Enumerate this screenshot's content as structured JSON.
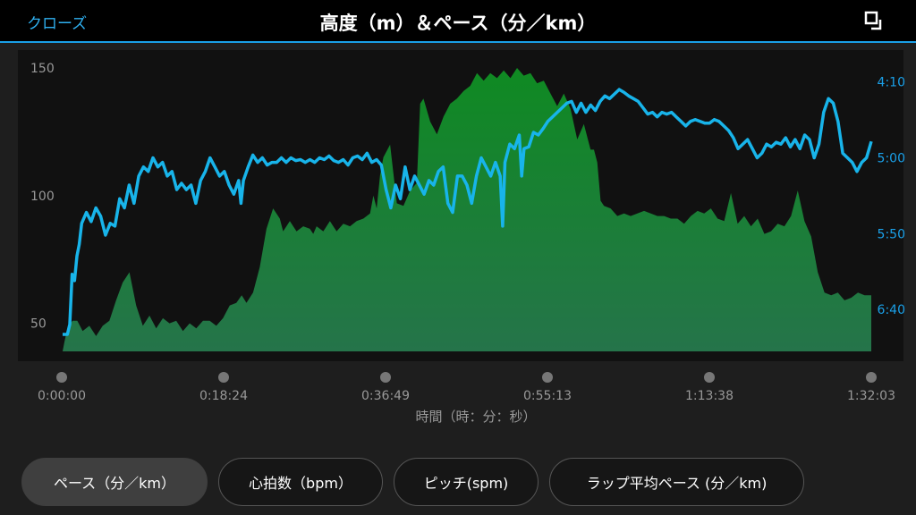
{
  "header": {
    "close_label": "クローズ",
    "title": "高度（m）＆ペース（分／km）"
  },
  "icons": {
    "fullscreen": "fullscreen-exit-icon"
  },
  "colors": {
    "background": "#1e1e1e",
    "header": "#000000",
    "accent": "#1aa0e8",
    "pace_line": "#18b4ea",
    "elevation_fill_top": "#0f8a22",
    "elevation_fill_bottom": "#25744a"
  },
  "chart_data": {
    "type": "area",
    "xlabel": "時間（時：分：秒）",
    "x_ticks": [
      "0:00:00",
      "0:18:24",
      "0:36:49",
      "0:55:13",
      "1:13:38",
      "1:32:03"
    ],
    "left_axis": {
      "ticks": [
        150,
        100,
        50
      ],
      "range": [
        39,
        157
      ]
    },
    "right_axis": {
      "ticks": [
        "4:10",
        "5:00",
        "5:50",
        "6:40"
      ],
      "range_min_per_km": [
        4.17,
        6.94
      ]
    },
    "series": [
      {
        "type": "area",
        "axis": "left",
        "points": [
          [
            0,
            39
          ],
          [
            0.3,
            43
          ],
          [
            0.8,
            49
          ],
          [
            1.5,
            51
          ],
          [
            2.2,
            51
          ],
          [
            3,
            47
          ],
          [
            4,
            49
          ],
          [
            5,
            45
          ],
          [
            6,
            49
          ],
          [
            7,
            51
          ],
          [
            8,
            59
          ],
          [
            9,
            66
          ],
          [
            10,
            70
          ],
          [
            11,
            57
          ],
          [
            12,
            49
          ],
          [
            13,
            53
          ],
          [
            14,
            48
          ],
          [
            15,
            52
          ],
          [
            16,
            50
          ],
          [
            17,
            51
          ],
          [
            18,
            47
          ],
          [
            19,
            50
          ],
          [
            20,
            48
          ],
          [
            21,
            51
          ],
          [
            22,
            51
          ],
          [
            23,
            49
          ],
          [
            24,
            52
          ],
          [
            25,
            57
          ],
          [
            26,
            58
          ],
          [
            26.8,
            61
          ],
          [
            27.5,
            58
          ],
          [
            28.5,
            62
          ],
          [
            29.5,
            72
          ],
          [
            30.5,
            87
          ],
          [
            31.5,
            95
          ],
          [
            32.5,
            91
          ],
          [
            33,
            86
          ],
          [
            34,
            90
          ],
          [
            35,
            86
          ],
          [
            36,
            88
          ],
          [
            37,
            87
          ],
          [
            37.5,
            85
          ],
          [
            38,
            88
          ],
          [
            39,
            86
          ],
          [
            40,
            90
          ],
          [
            41,
            86
          ],
          [
            42,
            89
          ],
          [
            43,
            88
          ],
          [
            44,
            90
          ],
          [
            45,
            91
          ],
          [
            46,
            93
          ],
          [
            46.5,
            100
          ],
          [
            47,
            95
          ],
          [
            47.5,
            108
          ],
          [
            48,
            115
          ],
          [
            49,
            120
          ],
          [
            50,
            97
          ],
          [
            51,
            96
          ],
          [
            52,
            102
          ],
          [
            53,
            105
          ],
          [
            53.5,
            136
          ],
          [
            54,
            138
          ],
          [
            55,
            129
          ],
          [
            56,
            124
          ],
          [
            57,
            131
          ],
          [
            58,
            136
          ],
          [
            59,
            138
          ],
          [
            60,
            141
          ],
          [
            61,
            143
          ],
          [
            62,
            148
          ],
          [
            63,
            145
          ],
          [
            64,
            148
          ],
          [
            65,
            146
          ],
          [
            66,
            149
          ],
          [
            67,
            146
          ],
          [
            68,
            150
          ],
          [
            69,
            147
          ],
          [
            70,
            148
          ],
          [
            71,
            144
          ],
          [
            72,
            145
          ],
          [
            73,
            140
          ],
          [
            74,
            135
          ],
          [
            75,
            140
          ],
          [
            76,
            134
          ],
          [
            77,
            122
          ],
          [
            78,
            128
          ],
          [
            79,
            118
          ],
          [
            79.5,
            118
          ],
          [
            80,
            113
          ],
          [
            80.5,
            98
          ],
          [
            81,
            96
          ],
          [
            82,
            95
          ],
          [
            83,
            92
          ],
          [
            84,
            93
          ],
          [
            85,
            92
          ],
          [
            86,
            93
          ],
          [
            87,
            94
          ],
          [
            88,
            93
          ],
          [
            89,
            92
          ],
          [
            90,
            92
          ],
          [
            91,
            91
          ],
          [
            92,
            91
          ],
          [
            93,
            89
          ],
          [
            94,
            92
          ],
          [
            95,
            94
          ],
          [
            96,
            93
          ],
          [
            97,
            95
          ],
          [
            98,
            91
          ],
          [
            99,
            90
          ],
          [
            100,
            101
          ],
          [
            101,
            89
          ],
          [
            102,
            92
          ],
          [
            103,
            88
          ],
          [
            104,
            91
          ],
          [
            105,
            85
          ],
          [
            106,
            86
          ],
          [
            107,
            89
          ],
          [
            108,
            88
          ],
          [
            109,
            92
          ],
          [
            110,
            102
          ],
          [
            111,
            90
          ],
          [
            112,
            84
          ],
          [
            113,
            70
          ],
          [
            114,
            62
          ],
          [
            115,
            61
          ],
          [
            116,
            62
          ],
          [
            117,
            59
          ],
          [
            118,
            60
          ],
          [
            119,
            62
          ],
          [
            120,
            61
          ],
          [
            121,
            61
          ]
        ]
      },
      {
        "type": "line",
        "axis": "right",
        "points": [
          [
            0,
            6.94
          ],
          [
            1,
            6.94
          ],
          [
            1.5,
            6.83
          ],
          [
            2,
            6.28
          ],
          [
            2.5,
            6.35
          ],
          [
            3,
            6.08
          ],
          [
            3.5,
            5.95
          ],
          [
            4,
            5.72
          ],
          [
            5,
            5.6
          ],
          [
            6,
            5.7
          ],
          [
            7,
            5.55
          ],
          [
            8,
            5.64
          ],
          [
            9,
            5.85
          ],
          [
            10,
            5.72
          ],
          [
            11,
            5.75
          ],
          [
            12,
            5.45
          ],
          [
            13,
            5.55
          ],
          [
            14,
            5.3
          ],
          [
            15,
            5.5
          ],
          [
            16,
            5.2
          ],
          [
            17,
            5.1
          ],
          [
            18,
            5.15
          ],
          [
            19,
            5.0
          ],
          [
            20,
            5.1
          ],
          [
            21,
            5.05
          ],
          [
            22,
            5.2
          ],
          [
            23,
            5.15
          ],
          [
            24,
            5.35
          ],
          [
            25,
            5.28
          ],
          [
            26,
            5.35
          ],
          [
            27,
            5.3
          ],
          [
            28,
            5.5
          ],
          [
            29,
            5.25
          ],
          [
            30,
            5.15
          ],
          [
            31,
            5.0
          ],
          [
            32,
            5.1
          ],
          [
            33,
            5.2
          ],
          [
            34,
            5.15
          ],
          [
            35,
            5.3
          ],
          [
            36,
            5.4
          ],
          [
            37,
            5.25
          ],
          [
            37.5,
            5.5
          ],
          [
            38,
            5.25
          ],
          [
            39,
            5.1
          ],
          [
            40,
            4.97
          ],
          [
            41,
            5.05
          ],
          [
            42,
            5.0
          ],
          [
            43,
            5.08
          ],
          [
            44,
            5.05
          ],
          [
            45,
            5.05
          ],
          [
            46,
            5.0
          ],
          [
            47,
            5.05
          ],
          [
            48,
            5.0
          ],
          [
            49,
            5.03
          ],
          [
            50,
            5.02
          ],
          [
            51,
            5.05
          ],
          [
            52,
            5.02
          ],
          [
            53,
            5.05
          ],
          [
            54,
            5.0
          ],
          [
            55,
            5.02
          ],
          [
            56,
            4.98
          ],
          [
            57,
            5.03
          ],
          [
            58,
            5.05
          ],
          [
            59,
            5.02
          ],
          [
            60,
            5.08
          ],
          [
            61,
            5.0
          ],
          [
            62,
            4.98
          ],
          [
            63,
            5.02
          ],
          [
            64,
            4.95
          ],
          [
            65,
            5.05
          ],
          [
            66,
            5.02
          ],
          [
            67,
            5.08
          ],
          [
            68,
            5.35
          ],
          [
            69,
            5.55
          ],
          [
            70,
            5.3
          ],
          [
            71,
            5.45
          ],
          [
            72,
            5.1
          ],
          [
            73,
            5.35
          ],
          [
            74,
            5.2
          ],
          [
            75,
            5.3
          ],
          [
            76,
            5.4
          ],
          [
            77,
            5.25
          ],
          [
            78,
            5.3
          ],
          [
            79,
            5.15
          ],
          [
            80,
            5.1
          ],
          [
            81,
            5.5
          ],
          [
            82,
            5.6
          ],
          [
            83,
            5.2
          ],
          [
            84,
            5.2
          ],
          [
            85,
            5.3
          ],
          [
            86,
            5.5
          ],
          [
            87,
            5.2
          ],
          [
            88,
            5.0
          ],
          [
            89,
            5.1
          ],
          [
            90,
            5.2
          ],
          [
            91,
            5.05
          ],
          [
            92,
            5.2
          ],
          [
            92.5,
            5.75
          ],
          [
            93,
            5.05
          ],
          [
            94,
            4.85
          ],
          [
            95,
            4.9
          ],
          [
            96,
            4.75
          ],
          [
            96.5,
            5.2
          ],
          [
            97,
            4.9
          ],
          [
            98,
            4.88
          ],
          [
            99,
            4.72
          ],
          [
            100,
            4.75
          ],
          [
            101,
            4.68
          ],
          [
            102,
            4.6
          ],
          [
            103,
            4.55
          ],
          [
            104,
            4.5
          ],
          [
            105,
            4.45
          ],
          [
            106,
            4.4
          ],
          [
            107,
            4.38
          ],
          [
            108,
            4.5
          ],
          [
            109,
            4.4
          ],
          [
            110,
            4.5
          ],
          [
            111,
            4.42
          ],
          [
            112,
            4.48
          ],
          [
            113,
            4.38
          ],
          [
            114,
            4.32
          ],
          [
            115,
            4.35
          ],
          [
            116,
            4.3
          ],
          [
            117,
            4.25
          ],
          [
            118,
            4.28
          ],
          [
            119,
            4.32
          ],
          [
            120,
            4.35
          ],
          [
            121,
            4.38
          ],
          [
            122,
            4.45
          ],
          [
            123,
            4.52
          ],
          [
            124,
            4.5
          ],
          [
            125,
            4.55
          ],
          [
            126,
            4.5
          ],
          [
            127,
            4.52
          ],
          [
            128,
            4.5
          ],
          [
            129,
            4.55
          ],
          [
            130,
            4.6
          ],
          [
            131,
            4.65
          ],
          [
            132,
            4.6
          ],
          [
            133,
            4.58
          ],
          [
            134,
            4.6
          ],
          [
            135,
            4.62
          ],
          [
            136,
            4.62
          ],
          [
            137,
            4.58
          ],
          [
            138,
            4.6
          ],
          [
            139,
            4.65
          ],
          [
            140,
            4.7
          ],
          [
            141,
            4.78
          ],
          [
            142,
            4.9
          ],
          [
            143,
            4.85
          ],
          [
            144,
            4.8
          ],
          [
            145,
            4.9
          ],
          [
            146,
            5.0
          ],
          [
            147,
            4.95
          ],
          [
            148,
            4.85
          ],
          [
            149,
            4.88
          ],
          [
            150,
            4.83
          ],
          [
            151,
            4.85
          ],
          [
            152,
            4.78
          ],
          [
            153,
            4.88
          ],
          [
            154,
            4.8
          ],
          [
            155,
            4.9
          ],
          [
            156,
            4.75
          ],
          [
            157,
            4.8
          ],
          [
            158,
            5.0
          ],
          [
            159,
            4.85
          ],
          [
            160,
            4.5
          ],
          [
            161,
            4.35
          ],
          [
            162,
            4.4
          ],
          [
            163,
            4.6
          ],
          [
            164,
            4.95
          ],
          [
            165,
            5.0
          ],
          [
            166,
            5.05
          ],
          [
            167,
            5.15
          ],
          [
            168,
            5.05
          ],
          [
            169,
            5.0
          ],
          [
            170,
            4.82
          ]
        ]
      }
    ]
  },
  "tabs": [
    {
      "label": "ペース（分／km）",
      "active": true
    },
    {
      "label": "心拍数（bpm）",
      "active": false
    },
    {
      "label": "ピッチ(spm)",
      "active": false
    },
    {
      "label": "ラップ平均ペース (分／km)",
      "active": false
    }
  ]
}
